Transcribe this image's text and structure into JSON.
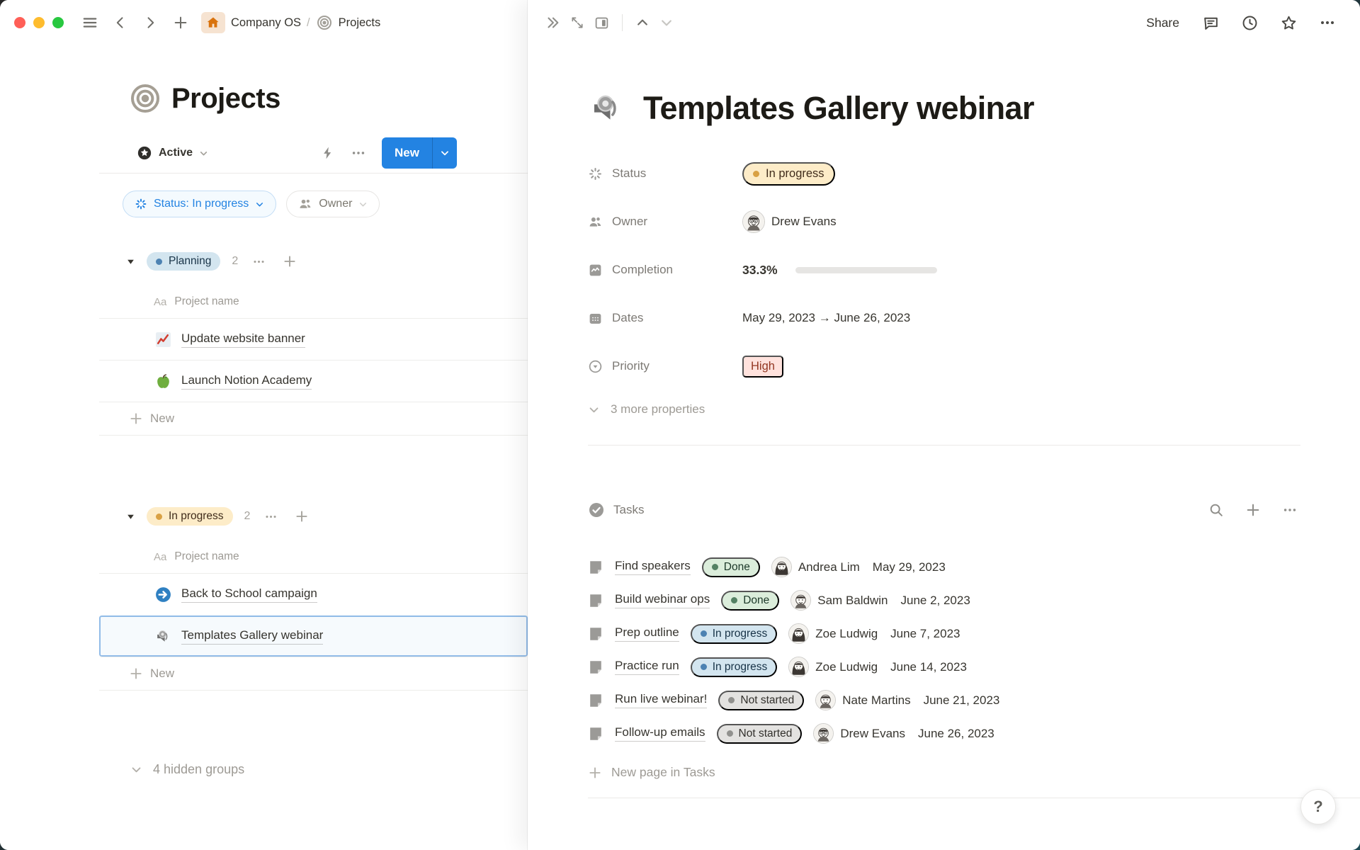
{
  "colors": {
    "accent_blue": "#2383e2",
    "text": "#37352f",
    "gray_text": "#9d9a94",
    "badge_blue_bg": "#d3e5ef",
    "badge_yellow_bg": "#fdecc8",
    "badge_green_bg": "#dbeddb",
    "badge_gray_bg": "#e3e2e0",
    "badge_red_bg": "#ffe2dd",
    "progress_green": "#548164",
    "traffic_red": "#ff5f57",
    "traffic_yellow": "#febc2e",
    "traffic_green": "#28c840"
  },
  "breadcrumb": {
    "workspace": "Company OS",
    "separator": "/",
    "page": "Projects"
  },
  "left_pane": {
    "title": "Projects",
    "toolbar": {
      "view_tab": "Active",
      "new_button": "New"
    },
    "filters": [
      {
        "label": "Status: In progress",
        "icon": "status-spinner-icon"
      },
      {
        "label": "Owner",
        "icon": "people-icon"
      }
    ],
    "aa_glyph": "Aa",
    "column_header": "Project name",
    "groups": [
      {
        "name": "Planning",
        "count": "2",
        "color": "blue",
        "new_label": "New",
        "rows": [
          {
            "title": "Update website banner",
            "icon": "chart-increasing-icon"
          },
          {
            "title": "Launch Notion Academy",
            "icon": "green-apple-icon"
          }
        ]
      },
      {
        "name": "In progress",
        "count": "2",
        "color": "yellow",
        "new_label": "New",
        "rows": [
          {
            "title": "Back to School campaign",
            "icon": "arrow-circle-icon"
          },
          {
            "title": "Templates Gallery webinar",
            "icon": "speaker-icon",
            "selected": true
          }
        ]
      }
    ],
    "hidden_groups_label": "4 hidden groups"
  },
  "peek": {
    "topbar": {
      "share": "Share"
    },
    "title": "Templates Gallery webinar",
    "title_icon": "speaker-icon",
    "properties": {
      "status": {
        "label": "Status",
        "value": "In progress",
        "color": "yellow"
      },
      "owner": {
        "label": "Owner",
        "value": "Drew Evans",
        "avatar": "drew-evans"
      },
      "completion": {
        "label": "Completion",
        "value": "33.3%",
        "percent": 33.3
      },
      "dates": {
        "label": "Dates",
        "value": "May 29, 2023 → June 26, 2023"
      },
      "priority": {
        "label": "Priority",
        "value": "High",
        "color": "red"
      }
    },
    "more_properties_label": "3 more properties",
    "tasks": {
      "title": "Tasks",
      "rows": [
        {
          "title": "Find speakers",
          "status": "Done",
          "status_color": "green",
          "assignee": "Andrea Lim",
          "avatar": "andrea-lim",
          "date": "May 29, 2023"
        },
        {
          "title": "Build webinar ops",
          "status": "Done",
          "status_color": "green",
          "assignee": "Sam Baldwin",
          "avatar": "sam-baldwin",
          "date": "June 2, 2023"
        },
        {
          "title": "Prep outline",
          "status": "In progress",
          "status_color": "blue",
          "assignee": "Zoe Ludwig",
          "avatar": "zoe-ludwig",
          "date": "June 7, 2023"
        },
        {
          "title": "Practice run",
          "status": "In progress",
          "status_color": "blue",
          "assignee": "Zoe Ludwig",
          "avatar": "zoe-ludwig",
          "date": "June 14, 2023"
        },
        {
          "title": "Run live webinar!",
          "status": "Not started",
          "status_color": "gray",
          "assignee": "Nate Martins",
          "avatar": "nate-martins",
          "date": "June 21, 2023"
        },
        {
          "title": "Follow-up emails",
          "status": "Not started",
          "status_color": "gray",
          "assignee": "Drew Evans",
          "avatar": "drew-evans",
          "date": "June 26, 2023"
        }
      ],
      "new_row_label": "New page in Tasks"
    }
  },
  "help_button": "?"
}
